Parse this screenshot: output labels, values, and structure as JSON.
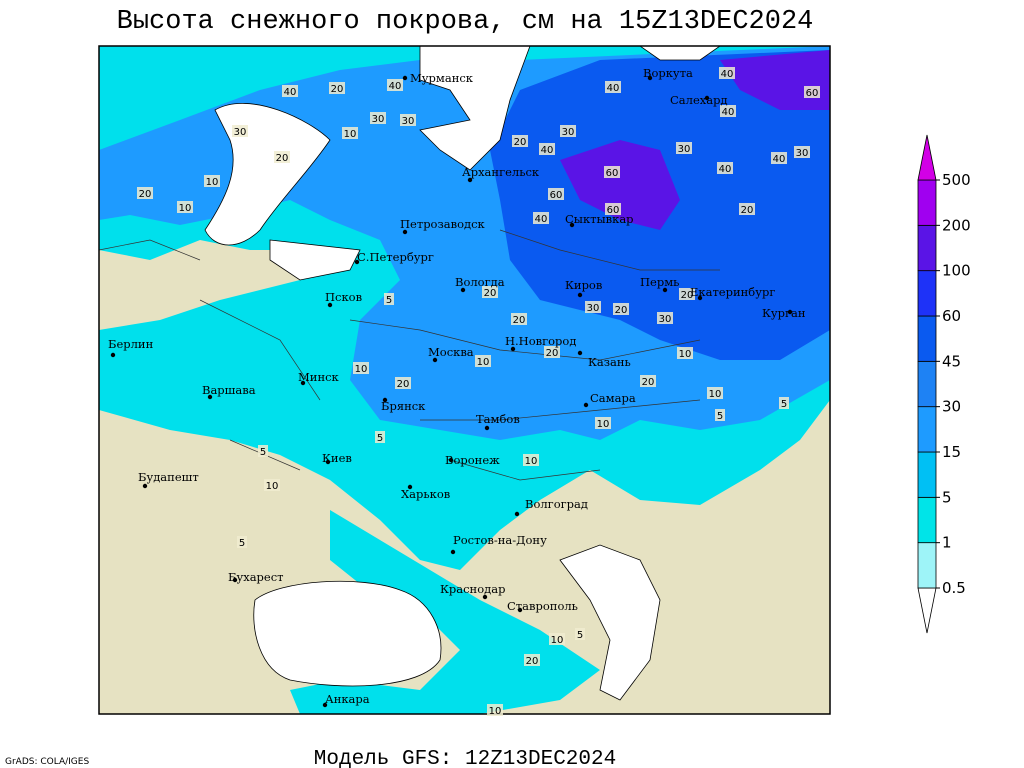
{
  "header": {
    "title": "Высота снежного покрова, см на 15Z13DEC2024"
  },
  "footer": {
    "model": "Модель GFS: 12Z13DEC2024",
    "credit": "GrADS: COLA/IGES"
  },
  "colorbar": {
    "levels": [
      0.5,
      1,
      5,
      15,
      30,
      45,
      60,
      100,
      200,
      500
    ],
    "colors": [
      "#ffffff",
      "#9ef4f8",
      "#00e4e8",
      "#00c0f4",
      "#1e9bff",
      "#1e82f4",
      "#0a5af0",
      "#1e32f8",
      "#5a14e6",
      "#a000f0",
      "#d200e6"
    ]
  },
  "cities": [
    "Мурманск",
    "Воркута",
    "Салехард",
    "Архангельск",
    "Сыктывкар",
    "Петрозаводск",
    "С.Петербург",
    "Вологда",
    "Киров",
    "Пермь",
    "Екатеринбург",
    "Курган",
    "Псков",
    "Берлин",
    "Н.Новгород",
    "Москва",
    "Казань",
    "Варшава",
    "Минск",
    "Самара",
    "Брянск",
    "Тамбов",
    "Киев",
    "Воронеж",
    "Будапешт",
    "Харьков",
    "Волгоград",
    "Ростов-на-Дону",
    "Бухарест",
    "Краснодар",
    "Ставрополь",
    "Анкара"
  ],
  "contour_labels": [
    40,
    20,
    40,
    30,
    30,
    10,
    30,
    20,
    10,
    20,
    10,
    20,
    30,
    40,
    40,
    40,
    60,
    40,
    30,
    40,
    40,
    30,
    60,
    60,
    60,
    40,
    20,
    20,
    30,
    20,
    30,
    20,
    20,
    20,
    10,
    20,
    10,
    5,
    5,
    10,
    10,
    20,
    10,
    5,
    5,
    10,
    5,
    10,
    5,
    10,
    5,
    20,
    10
  ]
}
